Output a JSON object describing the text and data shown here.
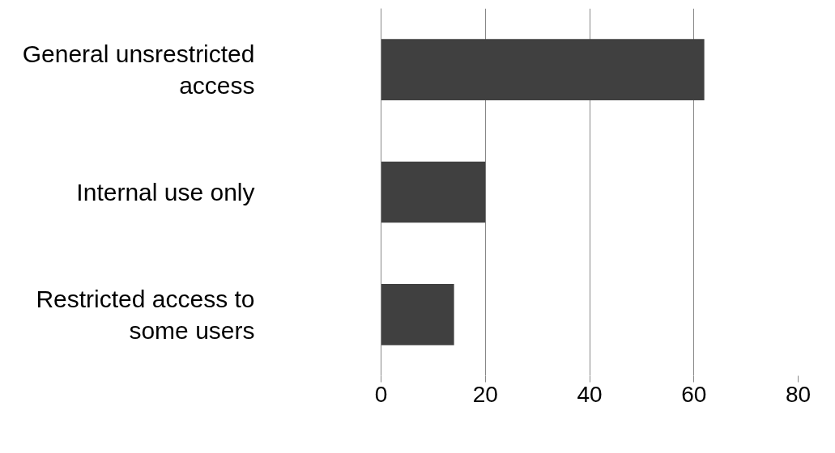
{
  "chart_data": {
    "type": "bar",
    "orientation": "horizontal",
    "categories": [
      "General unsrestricted access",
      "Internal use only",
      "Restricted access to some users"
    ],
    "values": [
      62,
      20,
      14
    ],
    "color": "#404040",
    "xlim": [
      0,
      80
    ],
    "xticks": [
      0,
      20,
      40,
      60,
      80
    ],
    "grid": "x"
  }
}
